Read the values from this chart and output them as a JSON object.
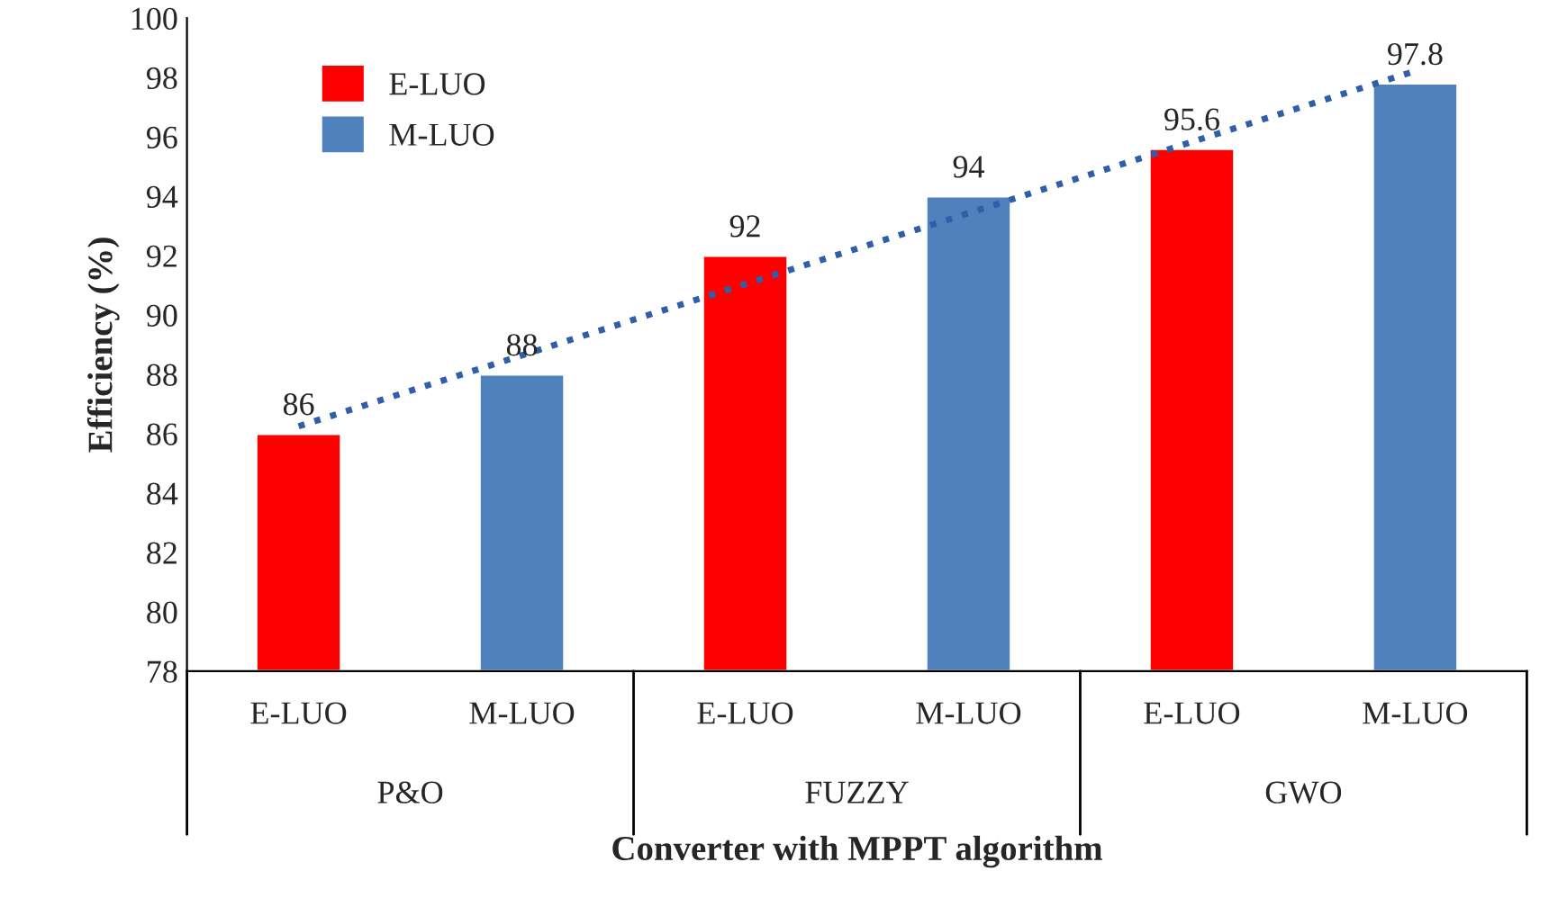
{
  "chart_data": {
    "type": "bar",
    "xlabel": "Converter with MPPT algorithm",
    "ylabel": "Efficiency (%)",
    "categories": [
      "E-LUO",
      "M-LUO",
      "E-LUO",
      "M-LUO",
      "E-LUO",
      "M-LUO"
    ],
    "series": [
      {
        "name": "E-LUO",
        "color": "#ff0000",
        "values": [
          86,
          null,
          92,
          null,
          95.6,
          null
        ],
        "value_labels": [
          "86",
          null,
          "92",
          null,
          "95.6",
          null
        ]
      },
      {
        "name": "M-LUO",
        "color": "#4f81bd",
        "values": [
          null,
          88,
          null,
          94,
          null,
          97.8
        ],
        "value_labels": [
          null,
          "88",
          null,
          "94",
          null,
          "97.8"
        ]
      },
      {
        "type": "line",
        "color": "#2e5fa8",
        "line_style": "dotted",
        "values": [
          86.25,
          88.64,
          91.04,
          93.43,
          95.83,
          98.22
        ]
      }
    ],
    "annotations": [
      "P&O",
      "FUZZY",
      "GWO"
    ],
    "legend": "top left",
    "grid": false,
    "ylim": [
      78,
      100
    ],
    "yticks": [
      78,
      80,
      82,
      84,
      86,
      88,
      90,
      92,
      94,
      96,
      98,
      100
    ]
  }
}
